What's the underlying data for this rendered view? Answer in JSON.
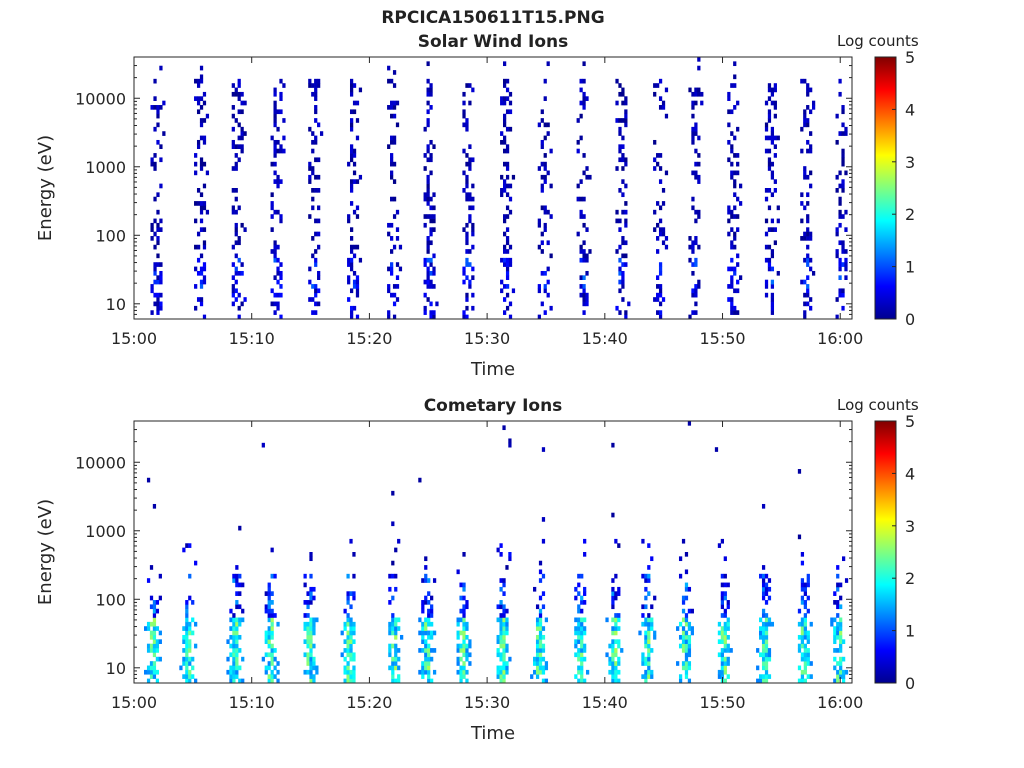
{
  "figure": {
    "title_line1": "RPCICA150611T15.PNG"
  },
  "colorbar": {
    "label": "Log counts",
    "ticks": [
      0,
      1,
      2,
      3,
      4,
      5
    ]
  },
  "colors": {
    "axis": "#262626",
    "background": "#ffffff"
  },
  "chart_data": [
    {
      "type": "heatmap",
      "title": "Solar Wind Ions",
      "xlabel": "Time",
      "ylabel": "Energy (eV)",
      "yscale": "log",
      "ylim": [
        6,
        40000
      ],
      "xlim": [
        "15:00",
        "16:01"
      ],
      "xticks": [
        "15:00",
        "15:10",
        "15:20",
        "15:30",
        "15:40",
        "15:50",
        "16:00"
      ],
      "yticks": [
        10,
        100,
        1000,
        10000
      ],
      "colorbar_label": "Log counts",
      "clim": [
        0,
        5
      ],
      "colormap": "jet",
      "sweep_minutes": [
        1.8,
        5.5,
        8.7,
        12.0,
        15.2,
        18.5,
        21.9,
        25.0,
        28.3,
        31.5,
        34.7,
        38.0,
        41.3,
        44.5,
        47.5,
        50.8,
        54.0,
        57.0,
        60.0
      ],
      "pattern": "periodic energy sweeps; sparse counts 0-1 log at high energy, 1-2 log near 20-40 eV"
    },
    {
      "type": "heatmap",
      "title": "Cometary Ions",
      "xlabel": "Time",
      "ylabel": "Energy (eV)",
      "yscale": "log",
      "ylim": [
        6,
        40000
      ],
      "xlim": [
        "15:00",
        "16:01"
      ],
      "xticks": [
        "15:00",
        "15:10",
        "15:20",
        "15:30",
        "15:40",
        "15:50",
        "16:00"
      ],
      "yticks": [
        10,
        100,
        1000,
        10000
      ],
      "colorbar_label": "Log counts",
      "clim": [
        0,
        5
      ],
      "colormap": "jet",
      "sweep_minutes": [
        1.5,
        4.5,
        8.5,
        11.5,
        14.8,
        18.2,
        22.0,
        24.8,
        27.8,
        31.2,
        34.3,
        37.8,
        40.7,
        43.5,
        46.7,
        50.0,
        53.5,
        56.8,
        59.8
      ],
      "pattern": "sweeps with peak counts 2-3 log near 20-50 eV, extending to few hundred eV; scattered points above 1000 eV"
    }
  ]
}
